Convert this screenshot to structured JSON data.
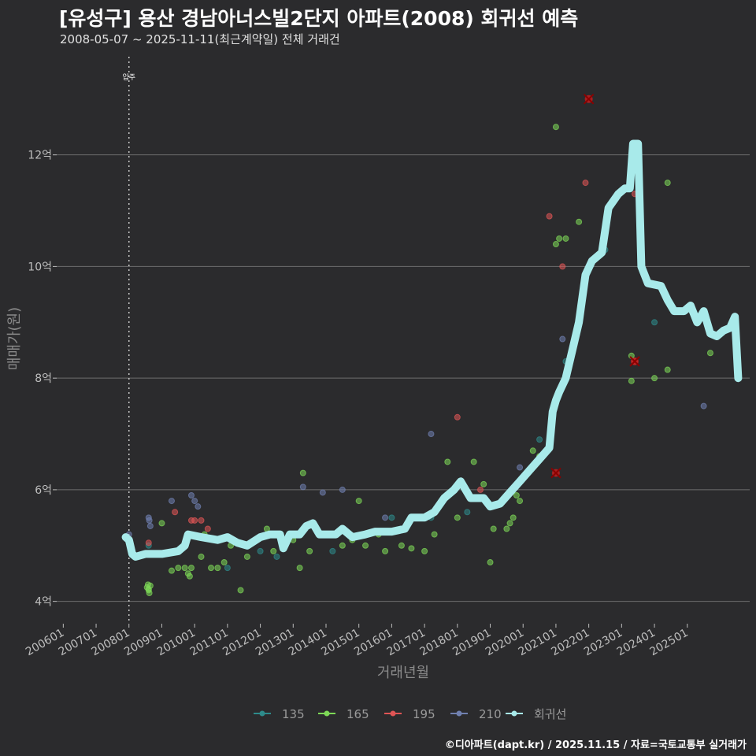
{
  "chart_data": {
    "type": "scatter",
    "title": "[유성구] 용산 경남아너스빌2단지 아파트(2008) 회귀선 예측",
    "subtitle": "2008-05-07 ~ 2025-11-11(최근계약일) 전체 거래건",
    "xlabel": "거래년월",
    "ylabel": "매매가(원)",
    "caption": "©디아파트(dapt.kr) / 2025.11.15 / 자료=국토교통부 실거래가",
    "x_ticks": [
      "200601",
      "200701",
      "200801",
      "200901",
      "201001",
      "201101",
      "201201",
      "201301",
      "201401",
      "201501",
      "201601",
      "201701",
      "201801",
      "201901",
      "202001",
      "202101",
      "202201",
      "202301",
      "202401",
      "202501"
    ],
    "y_ticks": [
      4,
      6,
      8,
      10,
      12
    ],
    "y_tick_labels": [
      "4억",
      "6억",
      "8억",
      "10억",
      "12억"
    ],
    "xlim": [
      2005.8,
      2026.9
    ],
    "ylim": [
      3.6,
      13.9
    ],
    "annotation": {
      "x": 2008.0,
      "label": "입주"
    },
    "legend": [
      {
        "name": "135",
        "color": "#2e8b8b"
      },
      {
        "name": "165",
        "color": "#7ed957"
      },
      {
        "name": "195",
        "color": "#e05555"
      },
      {
        "name": "210",
        "color": "#7080b0"
      },
      {
        "name": "회귀선",
        "color": "#a8eaea"
      }
    ],
    "series": [
      {
        "name": "135",
        "color": "#2e8b8b",
        "points": [
          [
            2008.6,
            5.0
          ],
          [
            2011.0,
            4.6
          ],
          [
            2012.0,
            4.9
          ],
          [
            2012.5,
            4.8
          ],
          [
            2014.2,
            4.9
          ],
          [
            2016.0,
            5.5
          ],
          [
            2017.2,
            5.5
          ],
          [
            2018.3,
            5.6
          ],
          [
            2020.5,
            6.9
          ],
          [
            2021.3,
            8.3
          ],
          [
            2022.5,
            10.3
          ],
          [
            2024.0,
            9.0
          ]
        ]
      },
      {
        "name": "165",
        "color": "#7ed957",
        "points": [
          [
            2008.55,
            4.25
          ],
          [
            2008.6,
            4.2
          ],
          [
            2008.58,
            4.3
          ],
          [
            2008.62,
            4.15
          ],
          [
            2008.65,
            4.28
          ],
          [
            2008.6,
            4.22
          ],
          [
            2009.0,
            5.4
          ],
          [
            2009.3,
            4.55
          ],
          [
            2009.5,
            4.6
          ],
          [
            2009.7,
            4.6
          ],
          [
            2009.8,
            4.5
          ],
          [
            2009.85,
            4.45
          ],
          [
            2009.9,
            4.6
          ],
          [
            2010.2,
            4.8
          ],
          [
            2010.3,
            5.2
          ],
          [
            2010.5,
            4.6
          ],
          [
            2010.7,
            4.6
          ],
          [
            2010.9,
            4.7
          ],
          [
            2011.1,
            5.0
          ],
          [
            2011.4,
            4.2
          ],
          [
            2011.6,
            4.8
          ],
          [
            2012.2,
            5.3
          ],
          [
            2012.4,
            4.9
          ],
          [
            2013.0,
            5.1
          ],
          [
            2013.2,
            4.6
          ],
          [
            2013.3,
            6.3
          ],
          [
            2013.5,
            4.9
          ],
          [
            2014.5,
            5.0
          ],
          [
            2014.8,
            5.1
          ],
          [
            2015.0,
            5.8
          ],
          [
            2015.2,
            5.0
          ],
          [
            2015.6,
            5.2
          ],
          [
            2015.8,
            4.9
          ],
          [
            2016.3,
            5.0
          ],
          [
            2016.6,
            4.95
          ],
          [
            2017.0,
            4.9
          ],
          [
            2017.3,
            5.2
          ],
          [
            2017.7,
            6.5
          ],
          [
            2018.0,
            5.5
          ],
          [
            2018.5,
            6.5
          ],
          [
            2018.8,
            6.1
          ],
          [
            2019.0,
            4.7
          ],
          [
            2019.1,
            5.3
          ],
          [
            2019.5,
            5.3
          ],
          [
            2019.6,
            5.4
          ],
          [
            2019.7,
            5.5
          ],
          [
            2019.8,
            5.9
          ],
          [
            2019.9,
            5.8
          ],
          [
            2020.3,
            6.7
          ],
          [
            2020.5,
            6.6
          ],
          [
            2021.0,
            10.4
          ],
          [
            2021.1,
            10.5
          ],
          [
            2021.3,
            10.5
          ],
          [
            2021.7,
            10.8
          ],
          [
            2023.3,
            12.0
          ],
          [
            2023.3,
            8.4
          ],
          [
            2023.3,
            7.95
          ],
          [
            2024.0,
            8.0
          ],
          [
            2024.4,
            11.5
          ],
          [
            2024.4,
            8.15
          ],
          [
            2025.7,
            8.45
          ],
          [
            2021.0,
            12.5
          ]
        ]
      },
      {
        "name": "195",
        "color": "#e05555",
        "points": [
          [
            2008.6,
            5.05
          ],
          [
            2009.4,
            5.6
          ],
          [
            2009.9,
            5.45
          ],
          [
            2010.0,
            5.45
          ],
          [
            2010.2,
            5.45
          ],
          [
            2010.4,
            5.3
          ],
          [
            2010.6,
            5.1
          ],
          [
            2018.7,
            6.0
          ],
          [
            2018.0,
            7.3
          ],
          [
            2020.8,
            10.9
          ],
          [
            2021.2,
            10.0
          ],
          [
            2021.9,
            11.5
          ],
          [
            2023.4,
            11.3
          ],
          [
            2023.4,
            8.3
          ]
        ]
      },
      {
        "name": "210",
        "color": "#7080b0",
        "points": [
          [
            2008.0,
            5.2
          ],
          [
            2008.6,
            5.5
          ],
          [
            2008.62,
            5.45
          ],
          [
            2008.65,
            5.35
          ],
          [
            2009.3,
            5.8
          ],
          [
            2009.9,
            5.9
          ],
          [
            2010.0,
            5.8
          ],
          [
            2010.1,
            5.7
          ],
          [
            2013.3,
            6.05
          ],
          [
            2013.9,
            5.95
          ],
          [
            2014.5,
            6.0
          ],
          [
            2015.8,
            5.5
          ],
          [
            2017.2,
            7.0
          ],
          [
            2019.9,
            6.4
          ],
          [
            2021.2,
            8.7
          ],
          [
            2025.5,
            7.5
          ]
        ]
      },
      {
        "name": "outlier",
        "color": "#c81e1e",
        "points": [
          [
            2022.0,
            13.0
          ],
          [
            2021.0,
            6.3
          ],
          [
            2023.4,
            8.3
          ]
        ]
      }
    ],
    "regression": [
      [
        2007.9,
        5.15
      ],
      [
        2008.0,
        5.1
      ],
      [
        2008.1,
        4.85
      ],
      [
        2008.2,
        4.8
      ],
      [
        2008.5,
        4.85
      ],
      [
        2009.0,
        4.85
      ],
      [
        2009.5,
        4.9
      ],
      [
        2009.7,
        5.0
      ],
      [
        2009.8,
        5.2
      ],
      [
        2010.2,
        5.15
      ],
      [
        2010.7,
        5.1
      ],
      [
        2011.0,
        5.15
      ],
      [
        2011.3,
        5.05
      ],
      [
        2011.6,
        5.0
      ],
      [
        2012.0,
        5.15
      ],
      [
        2012.3,
        5.2
      ],
      [
        2012.6,
        5.2
      ],
      [
        2012.7,
        4.95
      ],
      [
        2012.9,
        5.2
      ],
      [
        2013.2,
        5.2
      ],
      [
        2013.4,
        5.35
      ],
      [
        2013.6,
        5.4
      ],
      [
        2013.8,
        5.2
      ],
      [
        2014.3,
        5.2
      ],
      [
        2014.5,
        5.3
      ],
      [
        2014.8,
        5.15
      ],
      [
        2015.2,
        5.2
      ],
      [
        2015.5,
        5.25
      ],
      [
        2016.0,
        5.25
      ],
      [
        2016.4,
        5.3
      ],
      [
        2016.6,
        5.5
      ],
      [
        2017.0,
        5.5
      ],
      [
        2017.3,
        5.6
      ],
      [
        2017.6,
        5.85
      ],
      [
        2017.9,
        6.0
      ],
      [
        2018.1,
        6.15
      ],
      [
        2018.4,
        5.85
      ],
      [
        2018.8,
        5.85
      ],
      [
        2019.0,
        5.7
      ],
      [
        2019.3,
        5.75
      ],
      [
        2019.6,
        5.95
      ],
      [
        2019.9,
        6.15
      ],
      [
        2020.2,
        6.35
      ],
      [
        2020.5,
        6.55
      ],
      [
        2020.8,
        6.75
      ],
      [
        2020.9,
        7.4
      ],
      [
        2021.0,
        7.6
      ],
      [
        2021.1,
        7.75
      ],
      [
        2021.3,
        8.0
      ],
      [
        2021.5,
        8.5
      ],
      [
        2021.7,
        9.0
      ],
      [
        2021.9,
        9.85
      ],
      [
        2022.1,
        10.1
      ],
      [
        2022.4,
        10.25
      ],
      [
        2022.6,
        11.05
      ],
      [
        2022.9,
        11.3
      ],
      [
        2023.1,
        11.4
      ],
      [
        2023.25,
        11.4
      ],
      [
        2023.35,
        12.2
      ],
      [
        2023.5,
        12.2
      ],
      [
        2023.6,
        10.0
      ],
      [
        2023.8,
        9.7
      ],
      [
        2024.2,
        9.65
      ],
      [
        2024.4,
        9.4
      ],
      [
        2024.6,
        9.2
      ],
      [
        2024.9,
        9.2
      ],
      [
        2025.1,
        9.3
      ],
      [
        2025.3,
        9.0
      ],
      [
        2025.5,
        9.2
      ],
      [
        2025.7,
        8.8
      ],
      [
        2025.9,
        8.75
      ],
      [
        2026.1,
        8.85
      ],
      [
        2026.3,
        8.9
      ],
      [
        2026.45,
        9.1
      ],
      [
        2026.55,
        8.0
      ]
    ]
  }
}
